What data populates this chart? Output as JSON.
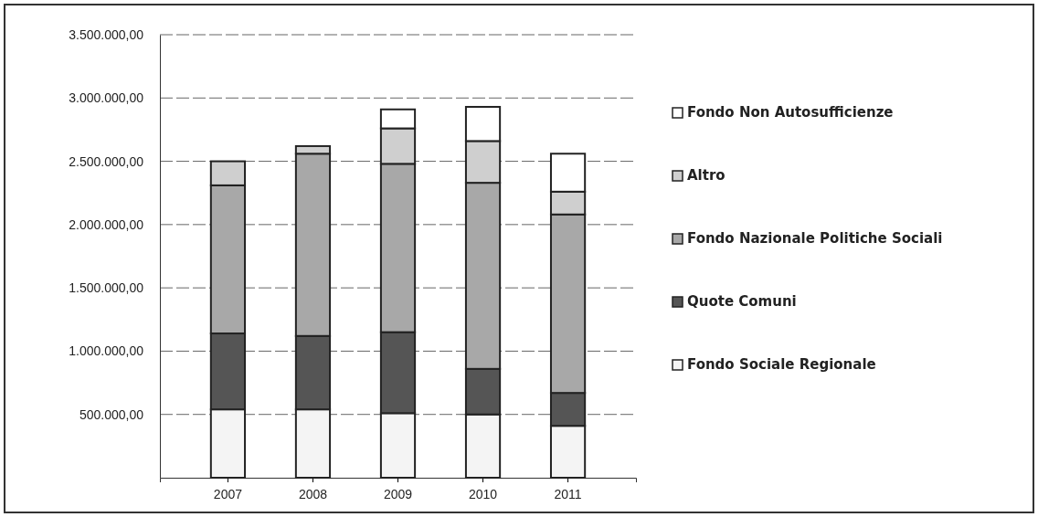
{
  "chart_data": {
    "type": "bar",
    "stacked": true,
    "categories": [
      "2007",
      "2008",
      "2009",
      "2010",
      "2011"
    ],
    "series": [
      {
        "name": "Fondo Sociale Regionale",
        "color": "#f4f4f4",
        "values": [
          540000,
          540000,
          510000,
          500000,
          410000
        ]
      },
      {
        "name": "Quote Comuni",
        "color": "#555555",
        "values": [
          600000,
          580000,
          640000,
          360000,
          260000
        ]
      },
      {
        "name": "Fondo Nazionale Politiche Sociali",
        "color": "#a8a8a8",
        "values": [
          1170000,
          1440000,
          1330000,
          1470000,
          1410000
        ]
      },
      {
        "name": "Altro",
        "color": "#cfcfcf",
        "values": [
          190000,
          60000,
          280000,
          330000,
          180000
        ]
      },
      {
        "name": "Fondo Non Autosufficienze",
        "color": "#ffffff",
        "values": [
          0,
          0,
          150000,
          270000,
          300000
        ]
      }
    ],
    "ylim": [
      0,
      3500000
    ],
    "yticks": [
      {
        "value": 500000,
        "label": "500.000,00"
      },
      {
        "value": 1000000,
        "label": "1.000.000,00"
      },
      {
        "value": 1500000,
        "label": "1.500.000,00"
      },
      {
        "value": 2000000,
        "label": "2.000.000,00"
      },
      {
        "value": 2500000,
        "label": "2.500.000,00"
      },
      {
        "value": 3000000,
        "label": "3.000.000,00"
      },
      {
        "value": 3500000,
        "label": "3.500.000,00"
      }
    ],
    "grid": "y",
    "legend": "right"
  }
}
